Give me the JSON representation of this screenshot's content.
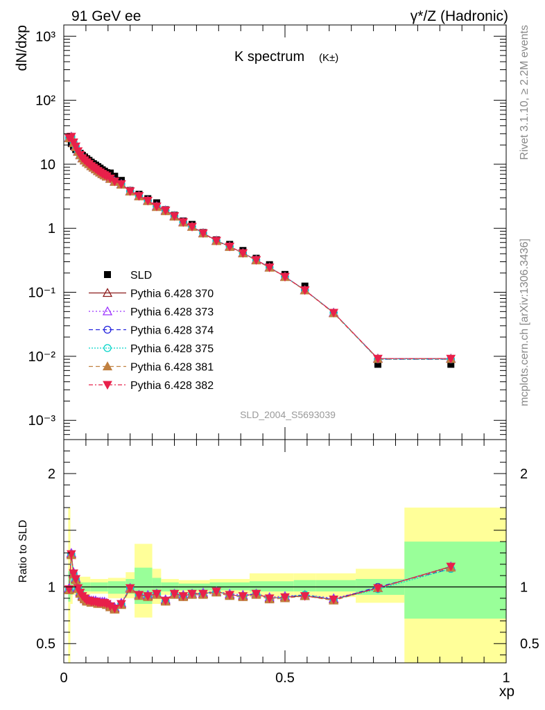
{
  "header": {
    "left_label": "91 GeV ee",
    "right_label": "γ*/Z (Hadronic)"
  },
  "side_labels": {
    "rivet": "Rivet 3.1.10, ≥ 2.2M events",
    "mcplots": "mcplots.cern.ch [arXiv:1306.3436]"
  },
  "colors": {
    "data": "#000000",
    "band_inner": "#99ff99",
    "band_outer": "#ffff99",
    "p370": "#8b1a1a",
    "p373": "#9b30ff",
    "p374": "#2222dd",
    "p375": "#00d4c8",
    "p381": "#c08040",
    "p382": "#e8204a"
  },
  "chart_data": [
    {
      "type": "scatter",
      "title": "K spectrum",
      "title_suffix": "(K±)",
      "watermark": "SLD_2004_S5693039",
      "ylabel": "dN/dxp",
      "xlabel": "",
      "ylog": true,
      "xlim": [
        0,
        1
      ],
      "ylim": [
        0.0005,
        1500
      ],
      "yticks": [
        {
          "value": 1000,
          "label": "10³"
        },
        {
          "value": 100,
          "label": "10²"
        },
        {
          "value": 10,
          "label": "10"
        },
        {
          "value": 1,
          "label": "1"
        },
        {
          "value": 0.1,
          "label": "10⁻¹"
        },
        {
          "value": 0.01,
          "label": "10⁻²"
        },
        {
          "value": 0.001,
          "label": "10⁻³"
        }
      ],
      "x": [
        0.012,
        0.017,
        0.022,
        0.027,
        0.032,
        0.037,
        0.042,
        0.047,
        0.052,
        0.057,
        0.062,
        0.067,
        0.072,
        0.077,
        0.082,
        0.087,
        0.092,
        0.097,
        0.105,
        0.115,
        0.13,
        0.15,
        0.17,
        0.19,
        0.21,
        0.23,
        0.25,
        0.27,
        0.29,
        0.315,
        0.345,
        0.375,
        0.405,
        0.435,
        0.465,
        0.5,
        0.545,
        0.61,
        0.71,
        0.875
      ],
      "series": [
        {
          "name": "SLD",
          "key": "sld",
          "style": "data",
          "marker": "square",
          "values": [
            25,
            21,
            19,
            17,
            16,
            14.8,
            13.8,
            13,
            12.2,
            11.5,
            10.8,
            10.2,
            9.7,
            9.2,
            8.7,
            8.2,
            7.8,
            7.4,
            7.3,
            6.5,
            5.6,
            3.9,
            3.4,
            2.9,
            2.5,
            1.95,
            1.6,
            1.3,
            1.15,
            0.86,
            0.66,
            0.56,
            0.45,
            0.34,
            0.27,
            0.19,
            0.125,
            0.048,
            0.0075,
            0.0075
          ]
        },
        {
          "name": "Pythia 6.428 370",
          "key": "p370",
          "dash": "",
          "marker": "tri-up-open",
          "values": [
            26,
            27,
            22,
            19,
            16,
            14,
            12.5,
            11.6,
            10.8,
            10.1,
            9.4,
            8.9,
            8.4,
            7.9,
            7.5,
            7.1,
            6.8,
            6.5,
            6.0,
            5.4,
            4.9,
            3.8,
            3.2,
            2.7,
            2.2,
            1.9,
            1.55,
            1.25,
            1.06,
            0.84,
            0.64,
            0.52,
            0.41,
            0.32,
            0.245,
            0.175,
            0.108,
            0.048,
            0.0092,
            0.0092
          ]
        },
        {
          "name": "Pythia 6.428 373",
          "key": "p373",
          "dash": "2,3",
          "marker": "tri-up-open",
          "values": [
            26,
            27,
            22,
            19,
            16,
            14,
            12.5,
            11.6,
            10.8,
            10.1,
            9.4,
            8.9,
            8.4,
            7.9,
            7.5,
            7.1,
            6.8,
            6.5,
            6.0,
            5.4,
            4.9,
            3.8,
            3.2,
            2.7,
            2.2,
            1.9,
            1.55,
            1.25,
            1.06,
            0.84,
            0.64,
            0.52,
            0.41,
            0.32,
            0.245,
            0.175,
            0.108,
            0.048,
            0.0092,
            0.0092
          ]
        },
        {
          "name": "Pythia 6.428 374",
          "key": "p374",
          "dash": "6,4",
          "marker": "circle-open",
          "values": [
            26,
            27,
            22,
            19,
            16,
            14,
            12.5,
            11.6,
            10.8,
            10.1,
            9.4,
            8.9,
            8.4,
            7.9,
            7.5,
            7.1,
            6.8,
            6.5,
            6.0,
            5.4,
            4.9,
            3.8,
            3.2,
            2.7,
            2.2,
            1.9,
            1.55,
            1.25,
            1.06,
            0.84,
            0.64,
            0.52,
            0.41,
            0.32,
            0.245,
            0.175,
            0.108,
            0.048,
            0.009,
            0.009
          ]
        },
        {
          "name": "Pythia 6.428 375",
          "key": "p375",
          "dash": "2,2",
          "marker": "circle-open",
          "values": [
            26,
            27,
            22,
            19,
            16,
            14,
            12.5,
            11.6,
            10.8,
            10.1,
            9.4,
            8.9,
            8.4,
            7.9,
            7.5,
            7.1,
            6.8,
            6.5,
            6.0,
            5.4,
            4.9,
            3.8,
            3.2,
            2.7,
            2.2,
            1.9,
            1.55,
            1.25,
            1.06,
            0.84,
            0.64,
            0.52,
            0.41,
            0.32,
            0.245,
            0.175,
            0.108,
            0.048,
            0.009,
            0.009
          ]
        },
        {
          "name": "Pythia 6.428 381",
          "key": "p381",
          "dash": "6,4",
          "marker": "tri-up-filled",
          "values": [
            25.5,
            26.5,
            21.5,
            18.5,
            15.6,
            13.8,
            12.3,
            11.4,
            10.6,
            10.0,
            9.3,
            8.8,
            8.3,
            7.8,
            7.4,
            7.0,
            6.7,
            6.4,
            5.9,
            5.3,
            4.8,
            3.75,
            3.15,
            2.65,
            2.15,
            1.85,
            1.52,
            1.23,
            1.05,
            0.83,
            0.63,
            0.51,
            0.405,
            0.315,
            0.242,
            0.173,
            0.107,
            0.047,
            0.0091,
            0.0091
          ]
        },
        {
          "name": "Pythia 6.428 382",
          "key": "p382",
          "dash": "6,3,2,3",
          "marker": "tri-down-filled",
          "values": [
            26,
            27,
            22,
            19,
            16,
            14,
            12.5,
            11.6,
            10.8,
            10.1,
            9.4,
            8.9,
            8.4,
            7.9,
            7.5,
            7.1,
            6.8,
            6.5,
            6.0,
            5.4,
            4.9,
            3.8,
            3.2,
            2.7,
            2.2,
            1.9,
            1.55,
            1.25,
            1.06,
            0.84,
            0.64,
            0.52,
            0.41,
            0.32,
            0.245,
            0.175,
            0.108,
            0.048,
            0.0092,
            0.0092
          ]
        }
      ],
      "legend_position": "middle-left"
    },
    {
      "type": "line",
      "title": "",
      "ylabel": "Ratio to SLD",
      "xlabel": "xp",
      "xlim": [
        0,
        1
      ],
      "ylim": [
        0.33,
        2.3
      ],
      "yticks": [
        {
          "value": 0.5,
          "label": "0.5"
        },
        {
          "value": 1,
          "label": "1"
        },
        {
          "value": 2,
          "label": "2"
        }
      ],
      "xticks": [
        {
          "value": 0,
          "label": "0"
        },
        {
          "value": 0.5,
          "label": "0.5"
        },
        {
          "value": 1,
          "label": "1"
        }
      ],
      "reference_line": 1,
      "bands": [
        {
          "x0": 0.01,
          "x1": 0.015,
          "outer": [
            0.33,
            1.7
          ],
          "inner": [
            0.87,
            1.14
          ]
        },
        {
          "x0": 0.015,
          "x1": 0.02,
          "outer": [
            0.85,
            1.25
          ],
          "inner": [
            0.93,
            1.08
          ]
        },
        {
          "x0": 0.02,
          "x1": 0.06,
          "outer": [
            0.93,
            1.09
          ],
          "inner": [
            0.96,
            1.04
          ]
        },
        {
          "x0": 0.06,
          "x1": 0.1,
          "outer": [
            0.94,
            1.07
          ],
          "inner": [
            0.96,
            1.04
          ]
        },
        {
          "x0": 0.1,
          "x1": 0.14,
          "outer": [
            0.9,
            1.08
          ],
          "inner": [
            0.94,
            1.05
          ]
        },
        {
          "x0": 0.14,
          "x1": 0.16,
          "outer": [
            0.9,
            1.13
          ],
          "inner": [
            0.94,
            1.07
          ]
        },
        {
          "x0": 0.16,
          "x1": 0.2,
          "outer": [
            0.73,
            1.38
          ],
          "inner": [
            0.85,
            1.17
          ]
        },
        {
          "x0": 0.2,
          "x1": 0.22,
          "outer": [
            0.85,
            1.16
          ],
          "inner": [
            0.92,
            1.08
          ]
        },
        {
          "x0": 0.22,
          "x1": 0.26,
          "outer": [
            0.93,
            1.07
          ],
          "inner": [
            0.96,
            1.04
          ]
        },
        {
          "x0": 0.26,
          "x1": 0.33,
          "outer": [
            0.94,
            1.06
          ],
          "inner": [
            0.97,
            1.03
          ]
        },
        {
          "x0": 0.33,
          "x1": 0.42,
          "outer": [
            0.94,
            1.07
          ],
          "inner": [
            0.97,
            1.04
          ]
        },
        {
          "x0": 0.42,
          "x1": 0.52,
          "outer": [
            0.91,
            1.12
          ],
          "inner": [
            0.96,
            1.05
          ]
        },
        {
          "x0": 0.52,
          "x1": 0.57,
          "outer": [
            0.91,
            1.12
          ],
          "inner": [
            0.96,
            1.06
          ]
        },
        {
          "x0": 0.57,
          "x1": 0.66,
          "outer": [
            0.91,
            1.12
          ],
          "inner": [
            0.96,
            1.06
          ]
        },
        {
          "x0": 0.66,
          "x1": 0.77,
          "outer": [
            0.86,
            1.16
          ],
          "inner": [
            0.93,
            1.07
          ]
        },
        {
          "x0": 0.77,
          "x1": 1.0,
          "outer": [
            0.33,
            1.7
          ],
          "inner": [
            0.72,
            1.4
          ]
        }
      ],
      "x": [
        0.012,
        0.017,
        0.022,
        0.027,
        0.032,
        0.037,
        0.042,
        0.047,
        0.052,
        0.057,
        0.062,
        0.067,
        0.072,
        0.077,
        0.082,
        0.087,
        0.092,
        0.097,
        0.105,
        0.115,
        0.13,
        0.15,
        0.17,
        0.19,
        0.21,
        0.23,
        0.25,
        0.27,
        0.29,
        0.315,
        0.345,
        0.375,
        0.405,
        0.435,
        0.465,
        0.5,
        0.545,
        0.61,
        0.71,
        0.875
      ],
      "series": [
        {
          "name": "Pythia 6.428 370",
          "key": "p370",
          "dash": "",
          "marker": "tri-up-open",
          "values": [
            0.98,
            1.29,
            1.12,
            1.07,
            0.99,
            0.95,
            0.92,
            0.9,
            0.88,
            0.88,
            0.87,
            0.87,
            0.87,
            0.86,
            0.86,
            0.86,
            0.86,
            0.85,
            0.83,
            0.81,
            0.85,
            0.99,
            0.93,
            0.92,
            0.94,
            0.88,
            0.94,
            0.92,
            0.94,
            0.94,
            0.96,
            0.93,
            0.92,
            0.94,
            0.9,
            0.91,
            0.92,
            0.89,
            0.99,
            1.18
          ]
        },
        {
          "name": "Pythia 6.428 373",
          "key": "p373",
          "dash": "2,3",
          "marker": "tri-up-open",
          "values": [
            0.99,
            1.3,
            1.13,
            1.08,
            1.0,
            0.96,
            0.93,
            0.91,
            0.89,
            0.89,
            0.88,
            0.88,
            0.88,
            0.87,
            0.87,
            0.87,
            0.87,
            0.86,
            0.84,
            0.82,
            0.86,
            0.99,
            0.93,
            0.93,
            0.94,
            0.89,
            0.94,
            0.93,
            0.94,
            0.95,
            0.96,
            0.94,
            0.93,
            0.94,
            0.91,
            0.92,
            0.93,
            0.9,
            0.99,
            1.18
          ]
        },
        {
          "name": "Pythia 6.428 374",
          "key": "p374",
          "dash": "6,4",
          "marker": "circle-open",
          "values": [
            0.98,
            1.29,
            1.12,
            1.07,
            0.99,
            0.95,
            0.92,
            0.9,
            0.88,
            0.88,
            0.87,
            0.87,
            0.87,
            0.86,
            0.86,
            0.86,
            0.86,
            0.85,
            0.83,
            0.81,
            0.85,
            0.99,
            0.93,
            0.92,
            0.94,
            0.88,
            0.94,
            0.92,
            0.94,
            0.94,
            0.96,
            0.93,
            0.92,
            0.94,
            0.9,
            0.91,
            0.93,
            0.89,
            1.0,
            1.16
          ]
        },
        {
          "name": "Pythia 6.428 375",
          "key": "p375",
          "dash": "2,2",
          "marker": "circle-open",
          "values": [
            0.98,
            1.29,
            1.12,
            1.07,
            0.99,
            0.95,
            0.92,
            0.9,
            0.88,
            0.88,
            0.87,
            0.87,
            0.87,
            0.86,
            0.86,
            0.86,
            0.86,
            0.85,
            0.83,
            0.81,
            0.85,
            0.99,
            0.93,
            0.92,
            0.94,
            0.88,
            0.94,
            0.92,
            0.94,
            0.94,
            0.96,
            0.93,
            0.92,
            0.94,
            0.9,
            0.91,
            0.93,
            0.89,
            0.98,
            1.16
          ]
        },
        {
          "name": "Pythia 6.428 381",
          "key": "p381",
          "dash": "6,4",
          "marker": "tri-up-filled",
          "values": [
            0.97,
            1.28,
            1.11,
            1.06,
            0.98,
            0.94,
            0.91,
            0.89,
            0.87,
            0.87,
            0.86,
            0.86,
            0.86,
            0.85,
            0.85,
            0.85,
            0.85,
            0.84,
            0.82,
            0.8,
            0.84,
            0.98,
            0.92,
            0.91,
            0.93,
            0.87,
            0.93,
            0.91,
            0.93,
            0.93,
            0.95,
            0.92,
            0.91,
            0.93,
            0.89,
            0.9,
            0.92,
            0.88,
            0.99,
            1.17
          ]
        },
        {
          "name": "Pythia 6.428 382",
          "key": "p382",
          "dash": "6,3,2,3",
          "marker": "tri-down-filled",
          "values": [
            0.98,
            1.29,
            1.12,
            1.07,
            0.99,
            0.95,
            0.92,
            0.9,
            0.88,
            0.88,
            0.87,
            0.87,
            0.87,
            0.86,
            0.86,
            0.86,
            0.86,
            0.85,
            0.83,
            0.81,
            0.85,
            0.99,
            0.93,
            0.92,
            0.94,
            0.88,
            0.94,
            0.92,
            0.94,
            0.94,
            0.96,
            0.93,
            0.92,
            0.94,
            0.9,
            0.91,
            0.92,
            0.89,
            0.99,
            1.18
          ]
        }
      ]
    }
  ]
}
